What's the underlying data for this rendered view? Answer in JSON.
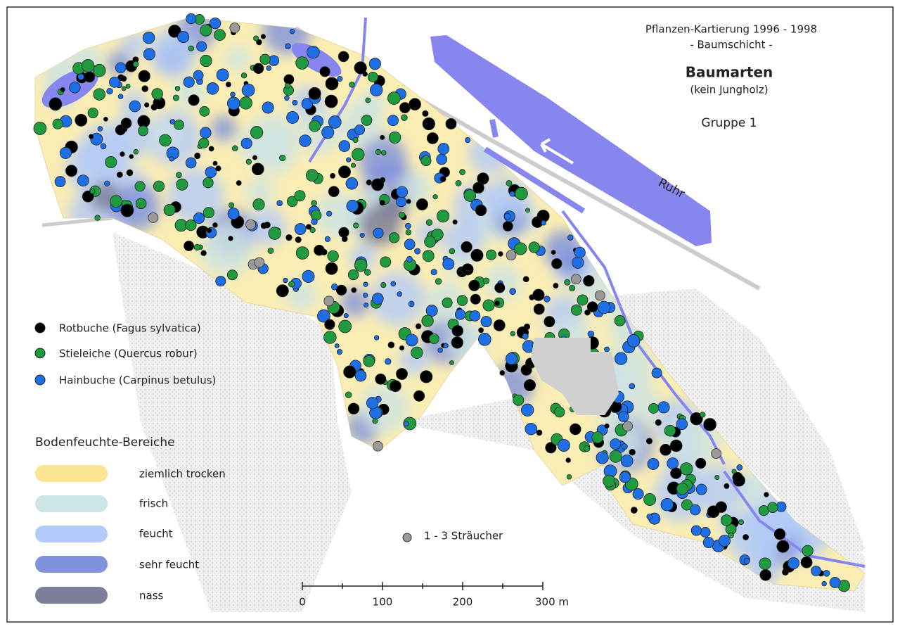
{
  "header": {
    "title_line1": "Pflanzen-Kartierung 1996 - 1998",
    "title_line2": "- Baumschicht -",
    "heading": "Baumarten",
    "subheading": "(kein Jungholz)",
    "group": "Gruppe 1"
  },
  "river": {
    "label": "Ruhr"
  },
  "species_legend": {
    "items": [
      "Rotbuche (Fagus sylvatica)",
      "Stieleiche (Quercus robur)",
      "Hainbuche (Carpinus betulus)"
    ]
  },
  "moisture_legend": {
    "title": "Bodenfeuchte-Bereiche",
    "items": [
      "ziemlich trocken",
      "frisch",
      "feucht",
      "sehr feucht",
      "nass"
    ]
  },
  "shrubs_note": "1 - 3 Sträucher",
  "scale_bar": {
    "labels": [
      "0",
      "100",
      "200",
      "300 m"
    ]
  }
}
